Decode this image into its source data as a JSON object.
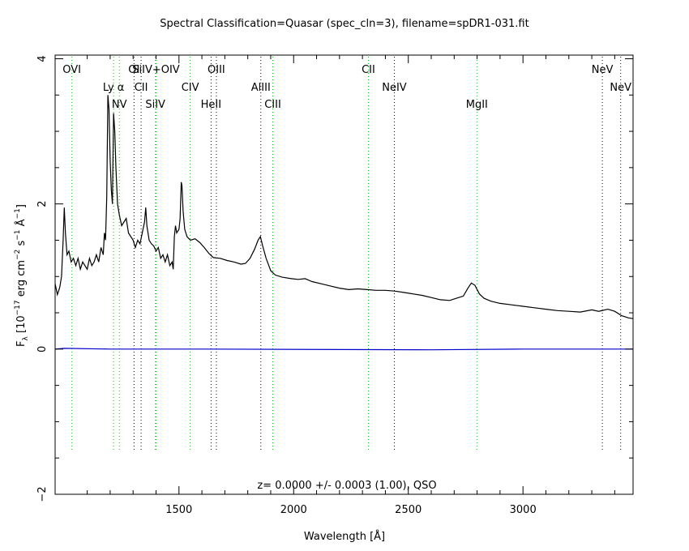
{
  "chart_data": {
    "type": "line",
    "title": "Spectral Classification=Quasar (spec_cln=3), filename=spDR1-031.fit",
    "xlabel": "Wavelength [Å]",
    "ylabel": "F_λ [10^-17 erg cm^-2 s^-1 Å^-1]",
    "xlim": [
      960,
      3480
    ],
    "ylim": [
      -2,
      4.05
    ],
    "x_ticks": [
      1500,
      2000,
      2500,
      3000
    ],
    "y_ticks": [
      -2,
      0,
      2,
      4
    ],
    "annotation": "z= 0.0000 +/- 0.0003 (1.00), QSO",
    "series": [
      {
        "color": "#000000",
        "points": [
          [
            960,
            0.9
          ],
          [
            970,
            0.75
          ],
          [
            980,
            0.85
          ],
          [
            988,
            1.0
          ],
          [
            995,
            1.5
          ],
          [
            1000,
            1.95
          ],
          [
            1005,
            1.6
          ],
          [
            1012,
            1.3
          ],
          [
            1020,
            1.35
          ],
          [
            1030,
            1.2
          ],
          [
            1040,
            1.25
          ],
          [
            1050,
            1.15
          ],
          [
            1060,
            1.25
          ],
          [
            1070,
            1.1
          ],
          [
            1080,
            1.2
          ],
          [
            1090,
            1.15
          ],
          [
            1100,
            1.1
          ],
          [
            1110,
            1.25
          ],
          [
            1120,
            1.15
          ],
          [
            1130,
            1.2
          ],
          [
            1140,
            1.3
          ],
          [
            1150,
            1.2
          ],
          [
            1160,
            1.4
          ],
          [
            1170,
            1.3
          ],
          [
            1175,
            1.6
          ],
          [
            1180,
            1.5
          ],
          [
            1185,
            2.1
          ],
          [
            1190,
            3.5
          ],
          [
            1195,
            3.3
          ],
          [
            1200,
            2.6
          ],
          [
            1205,
            2.2
          ],
          [
            1210,
            2.0
          ],
          [
            1215,
            3.25
          ],
          [
            1220,
            3.0
          ],
          [
            1225,
            2.5
          ],
          [
            1232,
            2.0
          ],
          [
            1240,
            1.85
          ],
          [
            1250,
            1.7
          ],
          [
            1260,
            1.75
          ],
          [
            1270,
            1.8
          ],
          [
            1280,
            1.6
          ],
          [
            1290,
            1.55
          ],
          [
            1300,
            1.5
          ],
          [
            1310,
            1.4
          ],
          [
            1320,
            1.5
          ],
          [
            1330,
            1.45
          ],
          [
            1340,
            1.6
          ],
          [
            1350,
            1.75
          ],
          [
            1355,
            1.95
          ],
          [
            1360,
            1.7
          ],
          [
            1370,
            1.5
          ],
          [
            1380,
            1.45
          ],
          [
            1390,
            1.42
          ],
          [
            1400,
            1.35
          ],
          [
            1410,
            1.4
          ],
          [
            1420,
            1.25
          ],
          [
            1430,
            1.3
          ],
          [
            1440,
            1.2
          ],
          [
            1450,
            1.3
          ],
          [
            1460,
            1.15
          ],
          [
            1470,
            1.2
          ],
          [
            1475,
            1.1
          ],
          [
            1480,
            1.55
          ],
          [
            1485,
            1.7
          ],
          [
            1490,
            1.6
          ],
          [
            1500,
            1.65
          ],
          [
            1505,
            1.8
          ],
          [
            1510,
            2.3
          ],
          [
            1513,
            2.25
          ],
          [
            1518,
            1.9
          ],
          [
            1525,
            1.65
          ],
          [
            1535,
            1.55
          ],
          [
            1550,
            1.5
          ],
          [
            1570,
            1.52
          ],
          [
            1590,
            1.47
          ],
          [
            1610,
            1.4
          ],
          [
            1630,
            1.32
          ],
          [
            1650,
            1.26
          ],
          [
            1680,
            1.25
          ],
          [
            1710,
            1.22
          ],
          [
            1740,
            1.2
          ],
          [
            1770,
            1.17
          ],
          [
            1790,
            1.18
          ],
          [
            1810,
            1.25
          ],
          [
            1830,
            1.38
          ],
          [
            1845,
            1.5
          ],
          [
            1855,
            1.55
          ],
          [
            1865,
            1.42
          ],
          [
            1880,
            1.25
          ],
          [
            1900,
            1.08
          ],
          [
            1920,
            1.02
          ],
          [
            1950,
            0.99
          ],
          [
            1990,
            0.97
          ],
          [
            2020,
            0.96
          ],
          [
            2050,
            0.97
          ],
          [
            2080,
            0.93
          ],
          [
            2120,
            0.9
          ],
          [
            2160,
            0.87
          ],
          [
            2200,
            0.84
          ],
          [
            2240,
            0.82
          ],
          [
            2280,
            0.83
          ],
          [
            2320,
            0.82
          ],
          [
            2360,
            0.81
          ],
          [
            2400,
            0.81
          ],
          [
            2440,
            0.8
          ],
          [
            2480,
            0.78
          ],
          [
            2520,
            0.76
          ],
          [
            2560,
            0.74
          ],
          [
            2600,
            0.71
          ],
          [
            2640,
            0.68
          ],
          [
            2680,
            0.67
          ],
          [
            2710,
            0.7
          ],
          [
            2740,
            0.73
          ],
          [
            2760,
            0.84
          ],
          [
            2775,
            0.91
          ],
          [
            2790,
            0.88
          ],
          [
            2810,
            0.76
          ],
          [
            2830,
            0.7
          ],
          [
            2860,
            0.66
          ],
          [
            2900,
            0.63
          ],
          [
            2950,
            0.61
          ],
          [
            3000,
            0.59
          ],
          [
            3050,
            0.57
          ],
          [
            3100,
            0.55
          ],
          [
            3150,
            0.53
          ],
          [
            3200,
            0.52
          ],
          [
            3250,
            0.51
          ],
          [
            3300,
            0.54
          ],
          [
            3330,
            0.52
          ],
          [
            3370,
            0.55
          ],
          [
            3400,
            0.52
          ],
          [
            3430,
            0.46
          ],
          [
            3460,
            0.43
          ],
          [
            3480,
            0.42
          ]
        ]
      },
      {
        "color": "#0000cc",
        "points": [
          [
            960,
            0.0
          ],
          [
            1000,
            0.01
          ],
          [
            1200,
            0.0
          ],
          [
            1600,
            0.0
          ],
          [
            2600,
            -0.01
          ],
          [
            3000,
            0.0
          ],
          [
            3480,
            0.0
          ]
        ]
      }
    ],
    "emission_lines": [
      {
        "label": "OVI",
        "x": 1033,
        "color": "#00cc00",
        "row": 1
      },
      {
        "label": "Ly α",
        "x": 1215,
        "color": "#00cc00",
        "row": 2
      },
      {
        "label": "NV",
        "x": 1240,
        "color": "#00cc00",
        "row": 3
      },
      {
        "label": "OI",
        "x": 1304,
        "color": "#000000",
        "row": 1
      },
      {
        "label": "CII",
        "x": 1335,
        "color": "#000000",
        "row": 2
      },
      {
        "label": "SiIV",
        "x": 1397,
        "color": "#00cc00",
        "row": 3
      },
      {
        "label": "SiIV+OIV",
        "x": 1400,
        "color": "#00cc00",
        "row": 1
      },
      {
        "label": "CIV",
        "x": 1549,
        "color": "#00cc00",
        "row": 2
      },
      {
        "label": "HeII",
        "x": 1640,
        "color": "#000000",
        "row": 3
      },
      {
        "label": "OIII",
        "x": 1663,
        "color": "#000000",
        "row": 1
      },
      {
        "label": "AlIII",
        "x": 1857,
        "color": "#000000",
        "row": 2
      },
      {
        "label": "CIII",
        "x": 1909,
        "color": "#00cc00",
        "row": 3
      },
      {
        "label": "CII",
        "x": 2326,
        "color": "#00cc00",
        "row": 1
      },
      {
        "label": "NeIV",
        "x": 2439,
        "color": "#000000",
        "row": 2
      },
      {
        "label": "MgII",
        "x": 2799,
        "color": "#00cc00",
        "row": 3
      },
      {
        "label": "NeV",
        "x": 3346,
        "color": "#000000",
        "row": 1
      },
      {
        "label": "NeV",
        "x": 3426,
        "color": "#000000",
        "row": 2
      }
    ]
  }
}
